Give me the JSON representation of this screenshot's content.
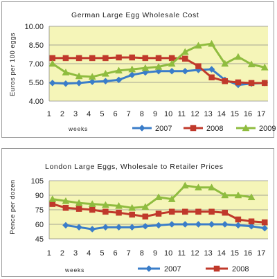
{
  "chart_data": [
    {
      "type": "line",
      "title": "German Large Egg Wholesale Cost",
      "xlabel": "weeks",
      "ylabel": "Euros per 100 eggs",
      "x": [
        "1",
        "2",
        "3",
        "4",
        "5",
        "6",
        "7",
        "8",
        "9",
        "10",
        "11",
        "12",
        "13",
        "14",
        "15",
        "16",
        "17"
      ],
      "ylim": [
        4.0,
        10.0
      ],
      "yticks": [
        "10.00",
        "8.50",
        "7.00",
        "5.50",
        "4.00"
      ],
      "ytick_values": [
        10.0,
        8.5,
        7.0,
        5.5,
        4.0
      ],
      "grid": true,
      "plot_background": "#f5f5b8",
      "legend_position": "bottom-right",
      "series": [
        {
          "name": "2007",
          "color": "#3a7dc9",
          "marker": "diamond",
          "values": [
            5.45,
            5.4,
            5.45,
            5.55,
            5.6,
            5.7,
            6.1,
            6.3,
            6.4,
            6.4,
            6.4,
            6.5,
            6.55,
            5.7,
            5.3,
            5.4,
            5.45
          ]
        },
        {
          "name": "2008",
          "color": "#c0392b",
          "marker": "square",
          "values": [
            7.45,
            7.45,
            7.45,
            7.45,
            7.45,
            7.5,
            7.5,
            7.45,
            7.45,
            7.45,
            7.4,
            6.8,
            5.9,
            5.6,
            5.5,
            5.45,
            5.45
          ]
        },
        {
          "name": "2009",
          "color": "#8fbc3f",
          "marker": "triangle",
          "values": [
            7.0,
            6.3,
            6.0,
            5.95,
            6.2,
            6.45,
            6.55,
            6.65,
            6.75,
            7.0,
            7.95,
            8.45,
            8.6,
            7.0,
            7.55,
            6.95,
            6.7
          ]
        }
      ]
    },
    {
      "type": "line",
      "title": "London Large Eggs, Wholesale to Retailer Prices",
      "xlabel": "weeks",
      "ylabel": "Pence per dozen",
      "x": [
        "1",
        "2",
        "3",
        "4",
        "5",
        "6",
        "7",
        "8",
        "9",
        "10",
        "11",
        "12",
        "13",
        "14",
        "15",
        "16",
        "17"
      ],
      "ylim": [
        45,
        105
      ],
      "yticks": [
        "105",
        "90",
        "75",
        "60",
        "45"
      ],
      "ytick_values": [
        105,
        90,
        75,
        60,
        45
      ],
      "grid": true,
      "plot_background": "#f5f5b8",
      "legend_position": "bottom-right",
      "series": [
        {
          "name": "2007",
          "color": "#3a7dc9",
          "marker": "diamond",
          "values": [
            null,
            59,
            57,
            55,
            57,
            57,
            57,
            58,
            59,
            60,
            60,
            60,
            60,
            60,
            59,
            58,
            56
          ]
        },
        {
          "name": "2008",
          "color": "#c0392b",
          "marker": "square",
          "values": [
            81,
            77,
            76,
            75,
            73,
            72,
            70,
            68,
            71,
            73,
            73,
            73,
            73,
            72,
            65,
            63,
            62
          ]
        },
        {
          "name": "",
          "color": "#8fbc3f",
          "marker": "triangle",
          "values": [
            86,
            84,
            82,
            81,
            80,
            79,
            77,
            78,
            88,
            86,
            100,
            98,
            98,
            90,
            90,
            88,
            null
          ]
        }
      ]
    }
  ]
}
